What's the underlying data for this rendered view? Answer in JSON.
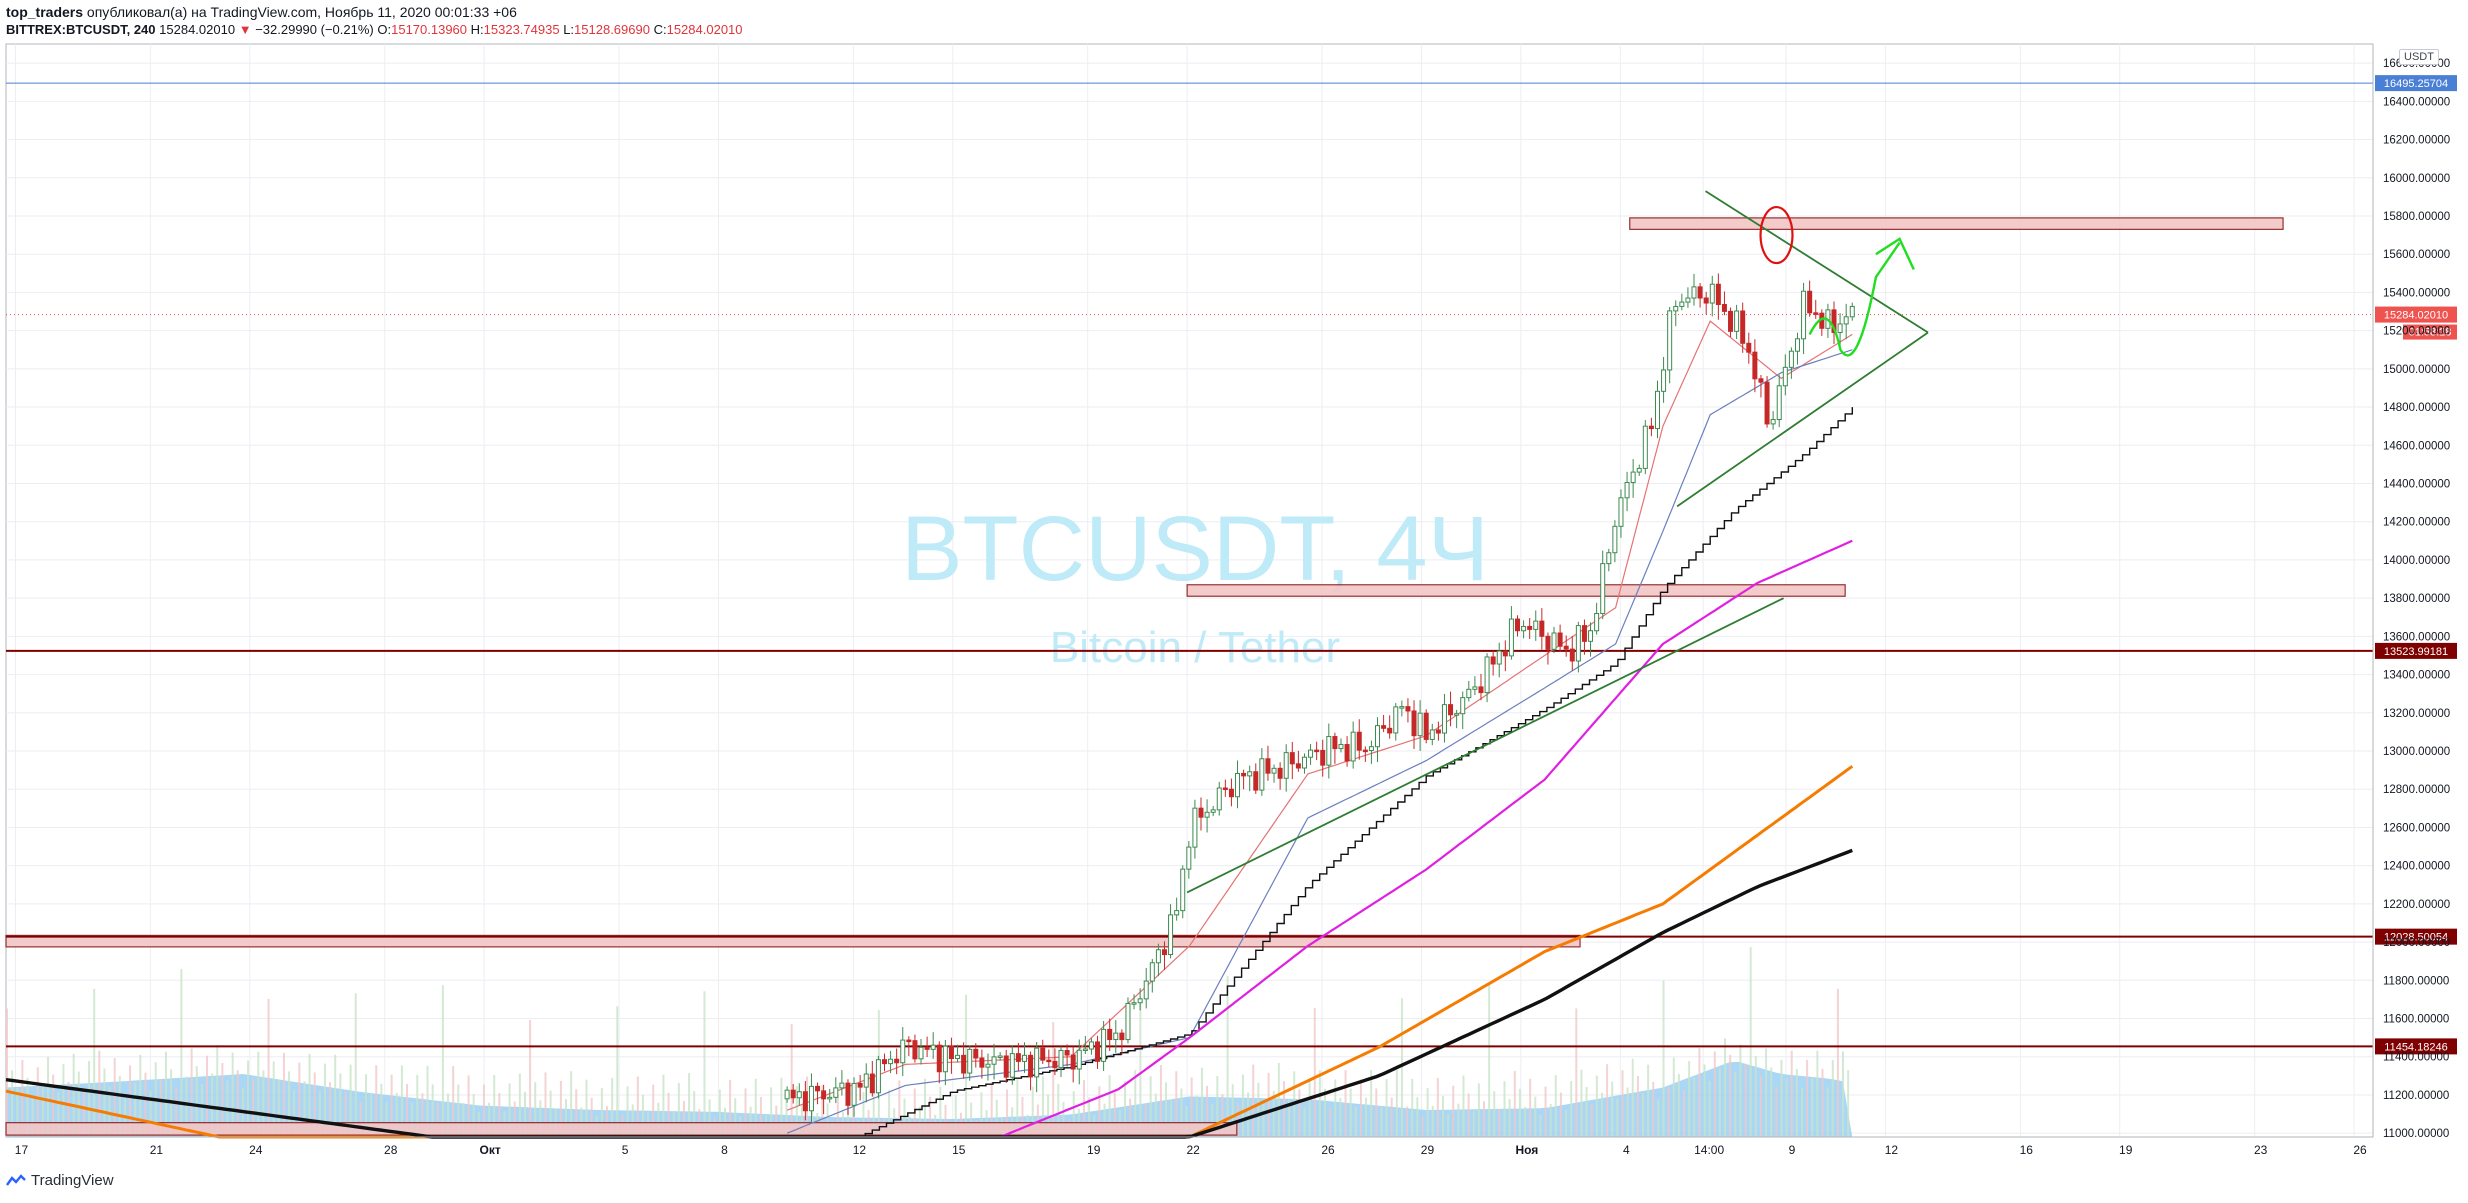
{
  "header": {
    "publisher": "top_traders",
    "published_text": "опубликовал(а) на TradingView.com, Ноябрь 11, 2020 00:01:33 +06",
    "symbol": "BITTREX:BTCUSDT, 240",
    "last": "15284.02010",
    "change": "−32.29990 (−0.21%)",
    "o_label": "O:",
    "o": "15170.13960",
    "h_label": "H:",
    "h": "15323.74935",
    "l_label": "L:",
    "l": "15128.69690",
    "c_label": "C:",
    "c": "15284.02010"
  },
  "watermark": {
    "title": "BTCUSDT, 4Ч",
    "subtitle": "Bitcoin / Tether"
  },
  "currency_label": "USDT",
  "footer": {
    "brand": "TradingView"
  },
  "colors": {
    "up": "#3d8a50",
    "down": "#c62828",
    "ma_fast": "#e57373",
    "ma_mid": "#6b7fbf",
    "ma_magenta": "#e020e0",
    "ma_orange": "#f57c00",
    "ma_black": "#111111",
    "trend": "#2e7d32",
    "level_red": "#7f0000",
    "level_blue": "#4a7fd6",
    "zone_fill": "#f2c6c6",
    "volume_area": "#8ec9f3",
    "watermark": "#bfeaf7"
  },
  "chart_data": {
    "type": "candlestick",
    "y_range": [
      10980,
      16700
    ],
    "y_ticks": [
      "16600.00000",
      "16400.00000",
      "16200.00000",
      "16000.00000",
      "15800.00000",
      "15600.00000",
      "15400.00000",
      "15200.00000",
      "15000.00000",
      "14800.00000",
      "14600.00000",
      "14400.00000",
      "14200.00000",
      "14000.00000",
      "13800.00000",
      "13600.00000",
      "13400.00000",
      "13200.00000",
      "13000.00000",
      "12800.00000",
      "12600.00000",
      "12400.00000",
      "12200.00000",
      "12000.00000",
      "11800.00000",
      "11600.00000",
      "11400.00000",
      "11200.00000",
      "11000.00000"
    ],
    "x_ticks": [
      {
        "label": "17",
        "x": 0.004
      },
      {
        "label": "21",
        "x": 0.061
      },
      {
        "label": "24",
        "x": 0.103
      },
      {
        "label": "28",
        "x": 0.16
      },
      {
        "label": "Окт",
        "x": 0.202
      },
      {
        "label": "5",
        "x": 0.259
      },
      {
        "label": "8",
        "x": 0.301
      },
      {
        "label": "12",
        "x": 0.358
      },
      {
        "label": "15",
        "x": 0.4
      },
      {
        "label": "19",
        "x": 0.457
      },
      {
        "label": "22",
        "x": 0.499
      },
      {
        "label": "26",
        "x": 0.556
      },
      {
        "label": "29",
        "x": 0.598
      },
      {
        "label": "Ноя",
        "x": 0.64
      },
      {
        "label": "4",
        "x": 0.682
      },
      {
        "label": "14:00",
        "x": 0.717
      },
      {
        "label": "9",
        "x": 0.752
      },
      {
        "label": "12",
        "x": 0.794
      },
      {
        "label": "16",
        "x": 0.851
      },
      {
        "label": "19",
        "x": 0.893
      },
      {
        "label": "23",
        "x": 0.95
      },
      {
        "label": "26",
        "x": 0.992
      }
    ],
    "price_anchors": [
      [
        0.33,
        11180
      ],
      [
        0.36,
        11230
      ],
      [
        0.38,
        11460
      ],
      [
        0.4,
        11390
      ],
      [
        0.42,
        11370
      ],
      [
        0.45,
        11390
      ],
      [
        0.47,
        11520
      ],
      [
        0.485,
        11880
      ],
      [
        0.495,
        12180
      ],
      [
        0.5,
        12600
      ],
      [
        0.52,
        12850
      ],
      [
        0.54,
        12920
      ],
      [
        0.56,
        13020
      ],
      [
        0.575,
        13020
      ],
      [
        0.59,
        13230
      ],
      [
        0.6,
        13080
      ],
      [
        0.62,
        13320
      ],
      [
        0.64,
        13680
      ],
      [
        0.66,
        13520
      ],
      [
        0.67,
        13640
      ],
      [
        0.68,
        14230
      ],
      [
        0.695,
        14700
      ],
      [
        0.705,
        15360
      ],
      [
        0.72,
        15400
      ],
      [
        0.735,
        15150
      ],
      [
        0.745,
        14700
      ],
      [
        0.76,
        15350
      ],
      [
        0.77,
        15220
      ],
      [
        0.78,
        15284
      ]
    ],
    "moving_averages": {
      "fast": [
        [
          0.33,
          11120
        ],
        [
          0.38,
          11360
        ],
        [
          0.45,
          11400
        ],
        [
          0.5,
          11980
        ],
        [
          0.55,
          12880
        ],
        [
          0.6,
          13080
        ],
        [
          0.65,
          13500
        ],
        [
          0.68,
          13750
        ],
        [
          0.7,
          14700
        ],
        [
          0.72,
          15250
        ],
        [
          0.75,
          14950
        ],
        [
          0.78,
          15180
        ]
      ],
      "mid": [
        [
          0.33,
          11000
        ],
        [
          0.38,
          11250
        ],
        [
          0.45,
          11360
        ],
        [
          0.5,
          11500
        ],
        [
          0.55,
          12650
        ],
        [
          0.6,
          12950
        ],
        [
          0.65,
          13330
        ],
        [
          0.68,
          13560
        ],
        [
          0.7,
          14150
        ],
        [
          0.72,
          14760
        ],
        [
          0.75,
          14980
        ],
        [
          0.78,
          15100
        ]
      ],
      "black_step": [
        [
          0.36,
          10980
        ],
        [
          0.4,
          11220
        ],
        [
          0.45,
          11350
        ],
        [
          0.5,
          11520
        ],
        [
          0.55,
          12300
        ],
        [
          0.6,
          12870
        ],
        [
          0.65,
          13220
        ],
        [
          0.68,
          13460
        ],
        [
          0.7,
          13850
        ],
        [
          0.73,
          14260
        ],
        [
          0.76,
          14560
        ],
        [
          0.78,
          14800
        ]
      ],
      "magenta": [
        [
          0.42,
          10980
        ],
        [
          0.47,
          11230
        ],
        [
          0.5,
          11500
        ],
        [
          0.55,
          11980
        ],
        [
          0.6,
          12380
        ],
        [
          0.65,
          12850
        ],
        [
          0.7,
          13560
        ],
        [
          0.74,
          13880
        ],
        [
          0.78,
          14100
        ]
      ],
      "orange": [
        [
          0.0,
          11220
        ],
        [
          0.09,
          10980
        ],
        [
          0.5,
          10980
        ],
        [
          0.58,
          11450
        ],
        [
          0.65,
          11950
        ],
        [
          0.7,
          12200
        ],
        [
          0.74,
          12560
        ],
        [
          0.78,
          12920
        ]
      ],
      "black_thick": [
        [
          0.0,
          11280
        ],
        [
          0.18,
          10980
        ],
        [
          0.5,
          10980
        ],
        [
          0.58,
          11300
        ],
        [
          0.65,
          11700
        ],
        [
          0.7,
          12050
        ],
        [
          0.74,
          12290
        ],
        [
          0.78,
          12480
        ]
      ]
    },
    "levels": [
      {
        "value": 16495.25704,
        "label": "16495.25704",
        "color": "level_blue"
      },
      {
        "value": 13523.99181,
        "label": "13523.99181",
        "color": "level_red"
      },
      {
        "value": 12028.50054,
        "label": "12028.50054",
        "color": "level_red"
      },
      {
        "value": 11454.18246,
        "label": "11454.18246",
        "color": "level_red"
      }
    ],
    "zones": [
      {
        "x1": 0.686,
        "x2": 0.962,
        "top": 15790,
        "bottom": 15730
      },
      {
        "x1": 0.499,
        "x2": 0.777,
        "top": 13870,
        "bottom": 13810
      },
      {
        "x1": 0.0,
        "x2": 0.665,
        "top": 12035,
        "bottom": 11975
      },
      {
        "x1": 0.0,
        "x2": 0.52,
        "top": 11055,
        "bottom": 10990
      }
    ],
    "trendlines": [
      [
        [
          0.499,
          12260
        ],
        [
          0.751,
          13800
        ]
      ],
      [
        [
          0.706,
          14280
        ],
        [
          0.812,
          15190
        ]
      ],
      [
        [
          0.718,
          15930
        ],
        [
          0.812,
          15190
        ]
      ],
      [
        [
          0.714,
          15930
        ],
        [
          0.714,
          15930
        ]
      ]
    ],
    "current_price": {
      "label": "15284.02010",
      "timer": "01:58:28",
      "value": 15284.0201
    }
  }
}
